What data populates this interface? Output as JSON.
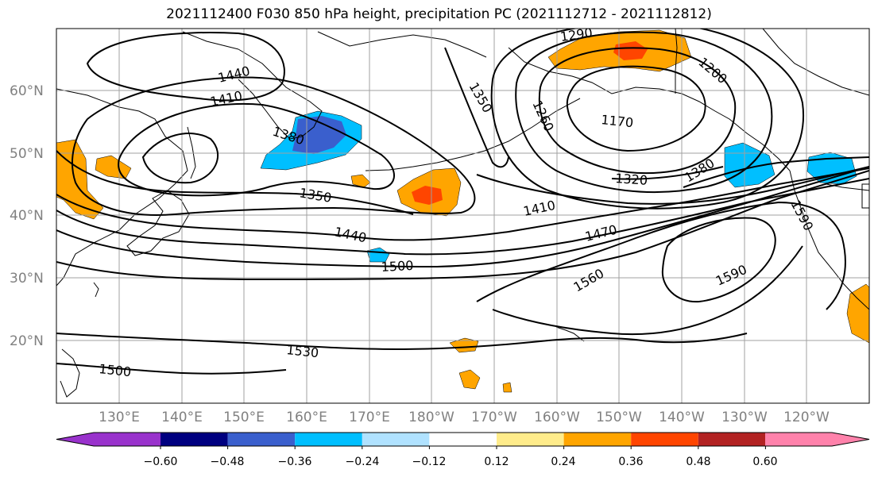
{
  "title": "2021112400 F030 850 hPa height, precipitation PC (2021112712 - 2021112812)",
  "lat_labels": [
    "60°N",
    "50°N",
    "40°N",
    "30°N",
    "20°N"
  ],
  "lon_labels": [
    "130°E",
    "140°E",
    "150°E",
    "160°E",
    "170°E",
    "180°W",
    "170°W",
    "160°W",
    "150°W",
    "140°W",
    "130°W",
    "120°W"
  ],
  "contour_labels": [
    "1440",
    "1410",
    "1290",
    "1350",
    "1260",
    "1200",
    "1170",
    "1380",
    "1320",
    "1410",
    "1470",
    "1350",
    "1440",
    "1500",
    "1560",
    "1590",
    "1530",
    "1500",
    "1590",
    "1380"
  ],
  "colorbar": {
    "ticks": [
      "−0.60",
      "−0.48",
      "−0.36",
      "−0.24",
      "−0.12",
      "0.12",
      "0.24",
      "0.36",
      "0.48",
      "0.60"
    ],
    "colors": [
      "#9932cc",
      "#000080",
      "#3a5fcd",
      "#00bfff",
      "#b0e2ff",
      "#ffffff",
      "#ffec8b",
      "#ffa500",
      "#ff4500",
      "#b22222",
      "#ff82ab"
    ]
  }
}
